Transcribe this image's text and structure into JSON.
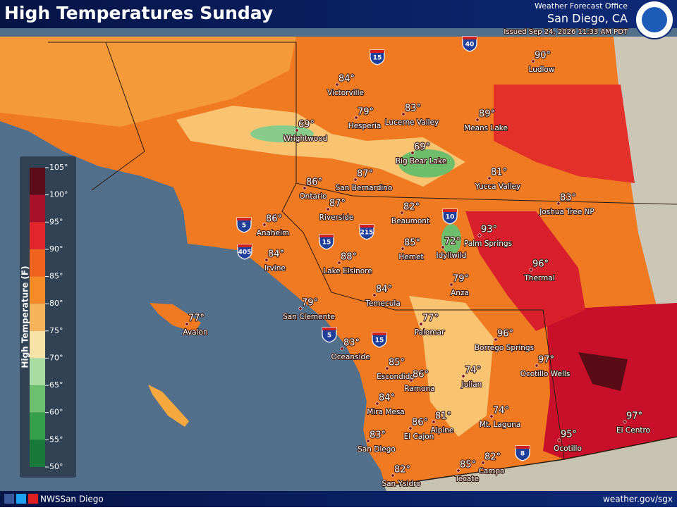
{
  "header": {
    "title": "High Temperatures Sunday",
    "office": "Weather Forecast Office",
    "location": "San Diego, CA",
    "issued": "Issued Sep 24, 2026 11:33 AM PDT"
  },
  "legend": {
    "title": "High Temperature (F)",
    "ticks": [
      "105°",
      "100°",
      "95°",
      "90°",
      "85°",
      "80°",
      "75°",
      "70°",
      "65°",
      "60°",
      "55°",
      "50°"
    ],
    "colors": [
      "#5c0c16",
      "#a8112a",
      "#e2262c",
      "#f06420",
      "#f58a26",
      "#f8b45a",
      "#f7e2a8",
      "#a8dca2",
      "#6cbf6c",
      "#34a04c",
      "#177a3a"
    ]
  },
  "cities": [
    {
      "name": "Victorville",
      "temp": "84°"
    },
    {
      "name": "Hesperia",
      "temp": "79°"
    },
    {
      "name": "Lucerne Valley",
      "temp": "83°"
    },
    {
      "name": "Means Lake",
      "temp": "89°"
    },
    {
      "name": "Ludlow",
      "temp": "90°"
    },
    {
      "name": "Wrightwood",
      "temp": "69°"
    },
    {
      "name": "Big Bear Lake",
      "temp": "69°"
    },
    {
      "name": "Yucca Valley",
      "temp": "81°"
    },
    {
      "name": "San Bernardino",
      "temp": "87°"
    },
    {
      "name": "Ontario",
      "temp": "86°"
    },
    {
      "name": "Riverside",
      "temp": "87°"
    },
    {
      "name": "Joshua Tree NP",
      "temp": "83°"
    },
    {
      "name": "Beaumont",
      "temp": "82°"
    },
    {
      "name": "Palm Springs",
      "temp": "93°"
    },
    {
      "name": "Anaheim",
      "temp": "86°"
    },
    {
      "name": "Irvine",
      "temp": "84°"
    },
    {
      "name": "Hemet",
      "temp": "85°"
    },
    {
      "name": "Idyllwild",
      "temp": "72°"
    },
    {
      "name": "Lake Elsinore",
      "temp": "88°"
    },
    {
      "name": "Thermal",
      "temp": "96°"
    },
    {
      "name": "Anza",
      "temp": "79°"
    },
    {
      "name": "Temecula",
      "temp": "84°"
    },
    {
      "name": "San Clemente",
      "temp": "79°"
    },
    {
      "name": "Avalon",
      "temp": "77°"
    },
    {
      "name": "Palomar",
      "temp": "77°"
    },
    {
      "name": "Borrego Springs",
      "temp": "96°"
    },
    {
      "name": "Oceanside",
      "temp": "83°"
    },
    {
      "name": "Ocotillo Wells",
      "temp": "97°"
    },
    {
      "name": "Escondido",
      "temp": "85°"
    },
    {
      "name": "Ramona",
      "temp": "86°"
    },
    {
      "name": "Julian",
      "temp": "74°"
    },
    {
      "name": "Mira Mesa",
      "temp": "84°"
    },
    {
      "name": "Alpine",
      "temp": "81°"
    },
    {
      "name": "Mt. Laguna",
      "temp": "74°"
    },
    {
      "name": "El Cajon",
      "temp": "86°"
    },
    {
      "name": "El Centro",
      "temp": "97°"
    },
    {
      "name": "Ocotillo",
      "temp": "95°"
    },
    {
      "name": "San Diego",
      "temp": "83°"
    },
    {
      "name": "Campo",
      "temp": "82°"
    },
    {
      "name": "Tecate",
      "temp": "85°"
    },
    {
      "name": "San Ysidro",
      "temp": "82°"
    }
  ],
  "highways": [
    "40",
    "15",
    "10",
    "215",
    "5",
    "405",
    "15",
    "5",
    "15",
    "8"
  ],
  "footer": {
    "social": "NWSSan Diego",
    "url": "weather.gov/sgx"
  }
}
